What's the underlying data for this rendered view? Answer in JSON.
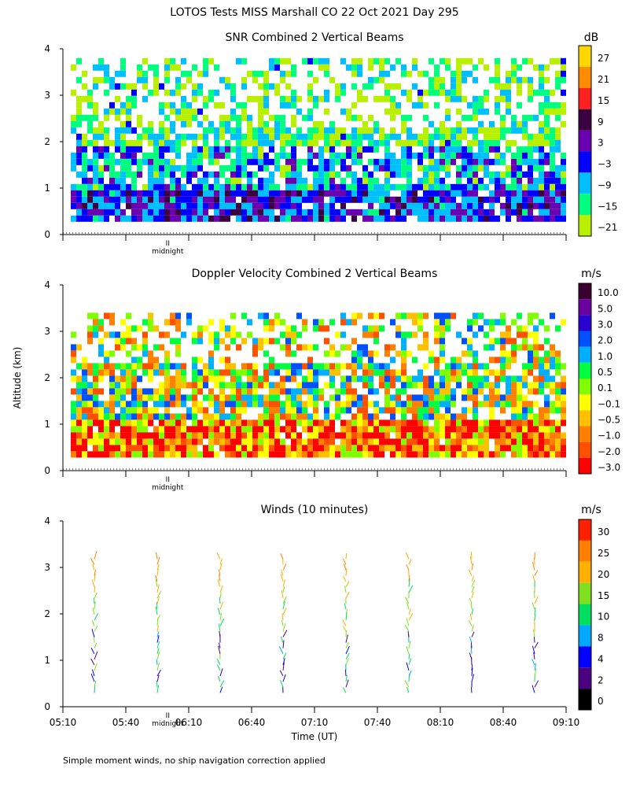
{
  "figure": {
    "title": "LOTOS Tests MISS Marshall CO  22 Oct 2021 Day 295",
    "ylabel": "Altitude (km)",
    "xlabel": "Time (UT)",
    "footnote": "Simple moment winds, no ship navigation correction applied",
    "midnight_label": "midnight",
    "midnight_marker": "II"
  },
  "chart_data": [
    {
      "type": "heatmap",
      "title": "SNR Combined 2 Vertical Beams",
      "x_ticks": [
        "05:10",
        "05:40",
        "06:10",
        "06:40",
        "07:10",
        "07:40",
        "08:10",
        "08:40",
        "09:10"
      ],
      "xlim": [
        "05:10",
        "09:10"
      ],
      "y_ticks": [
        0,
        1,
        2,
        3,
        4
      ],
      "ylim": [
        0,
        4
      ],
      "colorbar": {
        "unit": "dB",
        "labels": [
          "27",
          "21",
          "15",
          "9",
          "3",
          "−3",
          "−9",
          "−15",
          "−21"
        ],
        "colors": [
          "#ffd700",
          "#ff8c00",
          "#ff2020",
          "#3a0040",
          "#6a00b0",
          "#0000ff",
          "#00bfff",
          "#00ff7f",
          "#b8f000"
        ]
      },
      "data_range_km": [
        0.3,
        3.8
      ]
    },
    {
      "type": "heatmap",
      "title": "Doppler Velocity Combined 2 Vertical Beams",
      "x_ticks": [
        "05:10",
        "05:40",
        "06:10",
        "06:40",
        "07:10",
        "07:40",
        "08:10",
        "08:40",
        "09:10"
      ],
      "xlim": [
        "05:10",
        "09:10"
      ],
      "y_ticks": [
        0,
        1,
        2,
        3,
        4
      ],
      "ylim": [
        0,
        4
      ],
      "colorbar": {
        "unit": "m/s",
        "labels": [
          "10.0",
          "5.0",
          "3.0",
          "2.0",
          "1.0",
          "0.5",
          "0.1",
          "−0.1",
          "−0.5",
          "−1.0",
          "−2.0",
          "−3.0"
        ],
        "colors": [
          "#3a0030",
          "#6a00a0",
          "#2a00d0",
          "#0050ff",
          "#00b0ff",
          "#00ff40",
          "#80ff00",
          "#ffff00",
          "#ffc000",
          "#ff8000",
          "#ff5000",
          "#ff0000"
        ]
      },
      "data_range_km": [
        0.3,
        3.4
      ]
    },
    {
      "type": "scatter",
      "title": "Winds (10 minutes)",
      "x_ticks": [
        "05:10",
        "05:40",
        "06:10",
        "06:40",
        "07:10",
        "07:40",
        "08:10",
        "08:40",
        "09:10"
      ],
      "xlim": [
        "05:10",
        "09:10"
      ],
      "y_ticks": [
        0,
        1,
        2,
        3,
        4
      ],
      "ylim": [
        0,
        4
      ],
      "colorbar": {
        "unit": "m/s",
        "labels": [
          "30",
          "25",
          "20",
          "15",
          "10",
          "8",
          "4",
          "2",
          "0"
        ],
        "colors": [
          "#ff2000",
          "#ff8000",
          "#ffb000",
          "#80e020",
          "#00e060",
          "#00a8ff",
          "#0000ff",
          "#4b0080",
          "#000000"
        ]
      },
      "profile_times": [
        "05:25",
        "05:55",
        "06:25",
        "06:55",
        "07:25",
        "07:55",
        "08:25",
        "08:55"
      ]
    }
  ]
}
